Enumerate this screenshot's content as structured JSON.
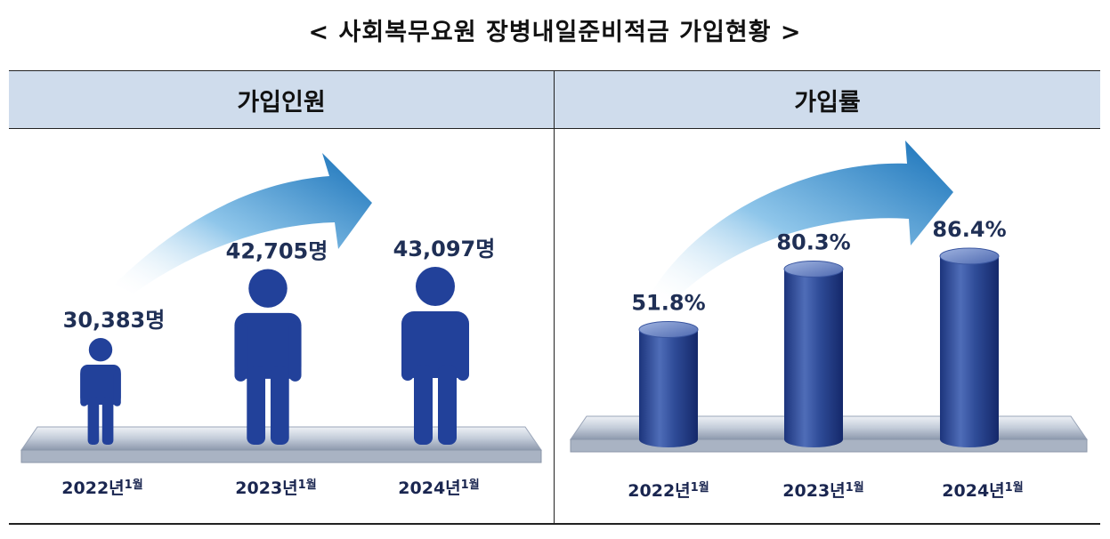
{
  "title": "< 사회복무요원 장병내일준비적금 가입현황 >",
  "panels": {
    "left_header": "가입인원",
    "right_header": "가입률"
  },
  "chart_data": [
    {
      "type": "pictograph",
      "title": "가입인원",
      "categories": [
        "2022년1월",
        "2023년1월",
        "2024년1월"
      ],
      "category_parts": [
        [
          "2022년",
          "1월"
        ],
        [
          "2023년",
          "1월"
        ],
        [
          "2024년",
          "1월"
        ]
      ],
      "values": [
        30383,
        42705,
        43097
      ],
      "value_labels": [
        "30,383명",
        "42,705명",
        "43,097명"
      ]
    },
    {
      "type": "bar",
      "title": "가입률",
      "categories": [
        "2022년1월",
        "2023년1월",
        "2024년1월"
      ],
      "category_parts": [
        [
          "2022년",
          "1월"
        ],
        [
          "2023년",
          "1월"
        ],
        [
          "2024년",
          "1월"
        ]
      ],
      "values": [
        51.8,
        80.3,
        86.4
      ],
      "value_labels": [
        "51.8%",
        "80.3%",
        "86.4%"
      ],
      "unit": "%"
    }
  ],
  "colors": {
    "header_bg": "#cfdcec",
    "figure": "#22419a",
    "cylinder": "#2c4b9a",
    "arrow": "#1d7fc0"
  }
}
